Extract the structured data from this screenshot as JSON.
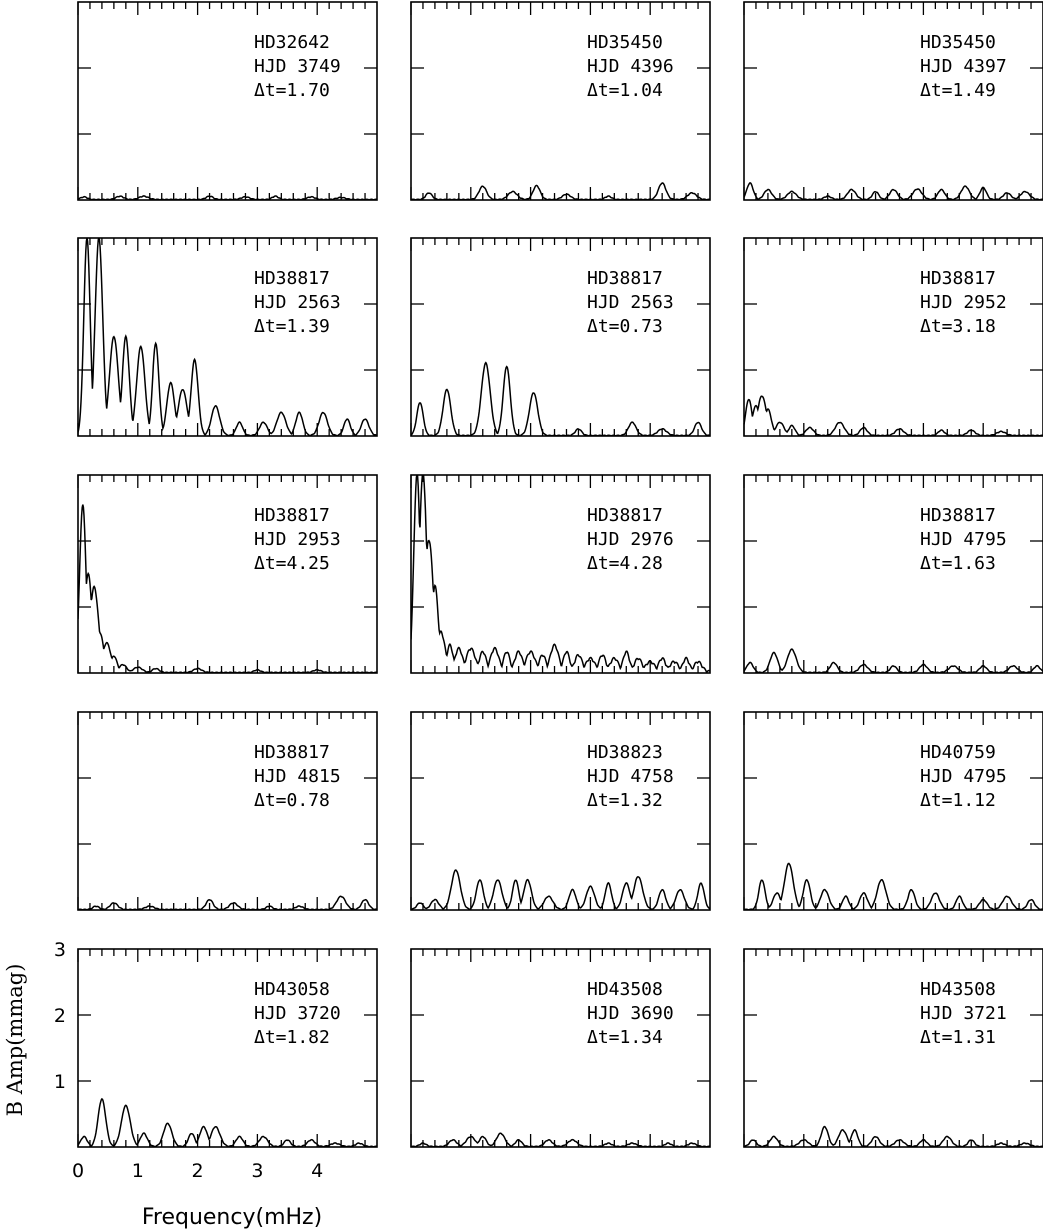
{
  "chart_data": {
    "type": "line",
    "layout": "grid of small multiples, 5 rows x 3 columns",
    "xlabel": "Frequency(mHz)",
    "ylabel": "B Amp(mmag)",
    "xlim": [
      0,
      5
    ],
    "ylim": [
      0,
      3
    ],
    "x_ticks": [
      0,
      1,
      2,
      3,
      4
    ],
    "y_ticks": [
      1,
      2,
      3
    ],
    "axis_labels_shown_on": "bottom-left panel only",
    "panels": [
      {
        "star": "HD32642",
        "hjd": "HJD 3749",
        "dt": "Δt=1.70",
        "peaks": [
          [
            0.1,
            0.04
          ],
          [
            0.7,
            0.05
          ],
          [
            1.1,
            0.05
          ],
          [
            2.2,
            0.05
          ],
          [
            2.8,
            0.04
          ],
          [
            3.3,
            0.05
          ],
          [
            3.9,
            0.04
          ],
          [
            4.4,
            0.03
          ]
        ]
      },
      {
        "star": "HD35450",
        "hjd": "HJD 4396",
        "dt": "Δt=1.04",
        "peaks": [
          [
            0.3,
            0.1
          ],
          [
            1.2,
            0.2
          ],
          [
            1.7,
            0.12
          ],
          [
            2.1,
            0.21
          ],
          [
            2.6,
            0.08
          ],
          [
            3.3,
            0.05
          ],
          [
            4.2,
            0.25
          ],
          [
            4.7,
            0.1
          ]
        ]
      },
      {
        "star": "HD35450",
        "hjd": "HJD 4397",
        "dt": "Δt=1.49",
        "peaks": [
          [
            0.1,
            0.25
          ],
          [
            0.4,
            0.15
          ],
          [
            0.8,
            0.12
          ],
          [
            1.4,
            0.05
          ],
          [
            1.8,
            0.15
          ],
          [
            2.2,
            0.12
          ],
          [
            2.5,
            0.15
          ],
          [
            2.9,
            0.16
          ],
          [
            3.3,
            0.15
          ],
          [
            3.7,
            0.2
          ],
          [
            4.0,
            0.18
          ],
          [
            4.4,
            0.1
          ],
          [
            4.7,
            0.12
          ]
        ]
      },
      {
        "star": "HD38817",
        "hjd": "HJD 2563",
        "dt": "Δt=1.39",
        "peaks": [
          [
            0.15,
            3.0
          ],
          [
            0.35,
            3.0
          ],
          [
            0.6,
            1.5
          ],
          [
            0.8,
            1.5
          ],
          [
            1.05,
            1.35
          ],
          [
            1.3,
            1.4
          ],
          [
            1.55,
            0.8
          ],
          [
            1.75,
            0.7
          ],
          [
            1.95,
            1.15
          ],
          [
            2.3,
            0.45
          ],
          [
            2.7,
            0.2
          ],
          [
            3.1,
            0.2
          ],
          [
            3.4,
            0.35
          ],
          [
            3.7,
            0.35
          ],
          [
            4.1,
            0.35
          ],
          [
            4.5,
            0.25
          ],
          [
            4.8,
            0.25
          ]
        ]
      },
      {
        "star": "HD38817",
        "hjd": "HJD 2563",
        "dt": "Δt=0.73",
        "peaks": [
          [
            0.15,
            0.5
          ],
          [
            0.6,
            0.7
          ],
          [
            1.25,
            1.1
          ],
          [
            1.6,
            1.05
          ],
          [
            2.05,
            0.65
          ],
          [
            2.8,
            0.1
          ],
          [
            3.7,
            0.2
          ],
          [
            4.2,
            0.1
          ],
          [
            4.8,
            0.2
          ]
        ]
      },
      {
        "star": "HD38817",
        "hjd": "HJD 2952",
        "dt": "Δt=3.18",
        "peaks": [
          [
            0.08,
            0.55
          ],
          [
            0.2,
            0.45
          ],
          [
            0.3,
            0.6
          ],
          [
            0.4,
            0.4
          ],
          [
            0.6,
            0.2
          ],
          [
            0.8,
            0.15
          ],
          [
            1.1,
            0.12
          ],
          [
            1.6,
            0.2
          ],
          [
            2.0,
            0.12
          ],
          [
            2.6,
            0.1
          ],
          [
            3.3,
            0.08
          ],
          [
            3.8,
            0.08
          ],
          [
            4.3,
            0.06
          ]
        ]
      },
      {
        "star": "HD38817",
        "hjd": "HJD 2953",
        "dt": "Δt=4.25",
        "peaks": [
          [
            0.08,
            2.55
          ],
          [
            0.17,
            1.5
          ],
          [
            0.27,
            1.3
          ],
          [
            0.37,
            0.6
          ],
          [
            0.48,
            0.45
          ],
          [
            0.6,
            0.25
          ],
          [
            0.75,
            0.12
          ],
          [
            1.0,
            0.08
          ],
          [
            1.3,
            0.06
          ],
          [
            2.0,
            0.06
          ],
          [
            3.0,
            0.04
          ],
          [
            4.0,
            0.04
          ]
        ]
      },
      {
        "star": "HD38817",
        "hjd": "HJD 2976",
        "dt": "Δt=4.28",
        "peaks": [
          [
            0.1,
            3.0
          ],
          [
            0.2,
            3.0
          ],
          [
            0.3,
            2.0
          ],
          [
            0.4,
            1.3
          ],
          [
            0.5,
            0.6
          ],
          [
            0.65,
            0.4
          ],
          [
            0.8,
            0.35
          ],
          [
            1.0,
            0.35
          ],
          [
            1.2,
            0.3
          ],
          [
            1.4,
            0.35
          ],
          [
            1.6,
            0.3
          ],
          [
            1.8,
            0.3
          ],
          [
            2.0,
            0.3
          ],
          [
            2.2,
            0.25
          ],
          [
            2.4,
            0.4
          ],
          [
            2.6,
            0.3
          ],
          [
            2.8,
            0.25
          ],
          [
            3.0,
            0.2
          ],
          [
            3.2,
            0.25
          ],
          [
            3.4,
            0.2
          ],
          [
            3.6,
            0.3
          ],
          [
            3.8,
            0.2
          ],
          [
            4.0,
            0.15
          ],
          [
            4.2,
            0.2
          ],
          [
            4.4,
            0.15
          ],
          [
            4.6,
            0.2
          ],
          [
            4.8,
            0.15
          ]
        ]
      },
      {
        "star": "HD38817",
        "hjd": "HJD 4795",
        "dt": "Δt=1.63",
        "peaks": [
          [
            0.1,
            0.15
          ],
          [
            0.5,
            0.3
          ],
          [
            0.8,
            0.35
          ],
          [
            1.5,
            0.15
          ],
          [
            2.0,
            0.12
          ],
          [
            2.5,
            0.1
          ],
          [
            3.0,
            0.12
          ],
          [
            3.5,
            0.1
          ],
          [
            4.0,
            0.1
          ],
          [
            4.5,
            0.1
          ],
          [
            4.9,
            0.1
          ]
        ]
      },
      {
        "star": "HD38817",
        "hjd": "HJD 4815",
        "dt": "Δt=0.78",
        "peaks": [
          [
            0.3,
            0.05
          ],
          [
            0.6,
            0.1
          ],
          [
            1.2,
            0.05
          ],
          [
            2.2,
            0.15
          ],
          [
            2.6,
            0.1
          ],
          [
            3.2,
            0.05
          ],
          [
            3.7,
            0.05
          ],
          [
            4.4,
            0.2
          ],
          [
            4.8,
            0.15
          ]
        ]
      },
      {
        "star": "HD38823",
        "hjd": "HJD 4758",
        "dt": "Δt=1.32",
        "peaks": [
          [
            0.15,
            0.1
          ],
          [
            0.4,
            0.15
          ],
          [
            0.75,
            0.6
          ],
          [
            1.15,
            0.45
          ],
          [
            1.45,
            0.45
          ],
          [
            1.75,
            0.45
          ],
          [
            1.95,
            0.45
          ],
          [
            2.3,
            0.2
          ],
          [
            2.7,
            0.3
          ],
          [
            3.0,
            0.35
          ],
          [
            3.3,
            0.4
          ],
          [
            3.6,
            0.4
          ],
          [
            3.8,
            0.5
          ],
          [
            4.2,
            0.3
          ],
          [
            4.5,
            0.3
          ],
          [
            4.85,
            0.4
          ]
        ]
      },
      {
        "star": "HD40759",
        "hjd": "HJD 4795",
        "dt": "Δt=1.12",
        "peaks": [
          [
            0.3,
            0.45
          ],
          [
            0.55,
            0.25
          ],
          [
            0.75,
            0.7
          ],
          [
            1.05,
            0.45
          ],
          [
            1.35,
            0.3
          ],
          [
            1.7,
            0.2
          ],
          [
            2.0,
            0.25
          ],
          [
            2.3,
            0.45
          ],
          [
            2.8,
            0.3
          ],
          [
            3.2,
            0.25
          ],
          [
            3.6,
            0.2
          ],
          [
            4.0,
            0.15
          ],
          [
            4.4,
            0.2
          ],
          [
            4.8,
            0.15
          ]
        ]
      },
      {
        "star": "HD43058",
        "hjd": "HJD 3720",
        "dt": "Δt=1.82",
        "peaks": [
          [
            0.1,
            0.15
          ],
          [
            0.4,
            0.72
          ],
          [
            0.8,
            0.62
          ],
          [
            1.1,
            0.2
          ],
          [
            1.5,
            0.35
          ],
          [
            1.9,
            0.2
          ],
          [
            2.1,
            0.3
          ],
          [
            2.3,
            0.3
          ],
          [
            2.7,
            0.15
          ],
          [
            3.1,
            0.15
          ],
          [
            3.5,
            0.1
          ],
          [
            3.9,
            0.1
          ],
          [
            4.3,
            0.05
          ],
          [
            4.7,
            0.05
          ]
        ]
      },
      {
        "star": "HD43508",
        "hjd": "HJD 3690",
        "dt": "Δt=1.34",
        "peaks": [
          [
            0.2,
            0.05
          ],
          [
            0.7,
            0.1
          ],
          [
            1.0,
            0.15
          ],
          [
            1.2,
            0.15
          ],
          [
            1.5,
            0.2
          ],
          [
            1.8,
            0.1
          ],
          [
            2.3,
            0.1
          ],
          [
            2.7,
            0.1
          ],
          [
            3.3,
            0.05
          ],
          [
            3.7,
            0.05
          ],
          [
            4.3,
            0.05
          ],
          [
            4.7,
            0.05
          ]
        ]
      },
      {
        "star": "HD43508",
        "hjd": "HJD 3721",
        "dt": "Δt=1.31",
        "peaks": [
          [
            0.15,
            0.1
          ],
          [
            0.5,
            0.15
          ],
          [
            1.0,
            0.1
          ],
          [
            1.35,
            0.3
          ],
          [
            1.65,
            0.25
          ],
          [
            1.85,
            0.25
          ],
          [
            2.2,
            0.15
          ],
          [
            2.6,
            0.1
          ],
          [
            3.0,
            0.1
          ],
          [
            3.4,
            0.15
          ],
          [
            3.8,
            0.1
          ],
          [
            4.3,
            0.05
          ],
          [
            4.7,
            0.05
          ]
        ]
      }
    ]
  }
}
